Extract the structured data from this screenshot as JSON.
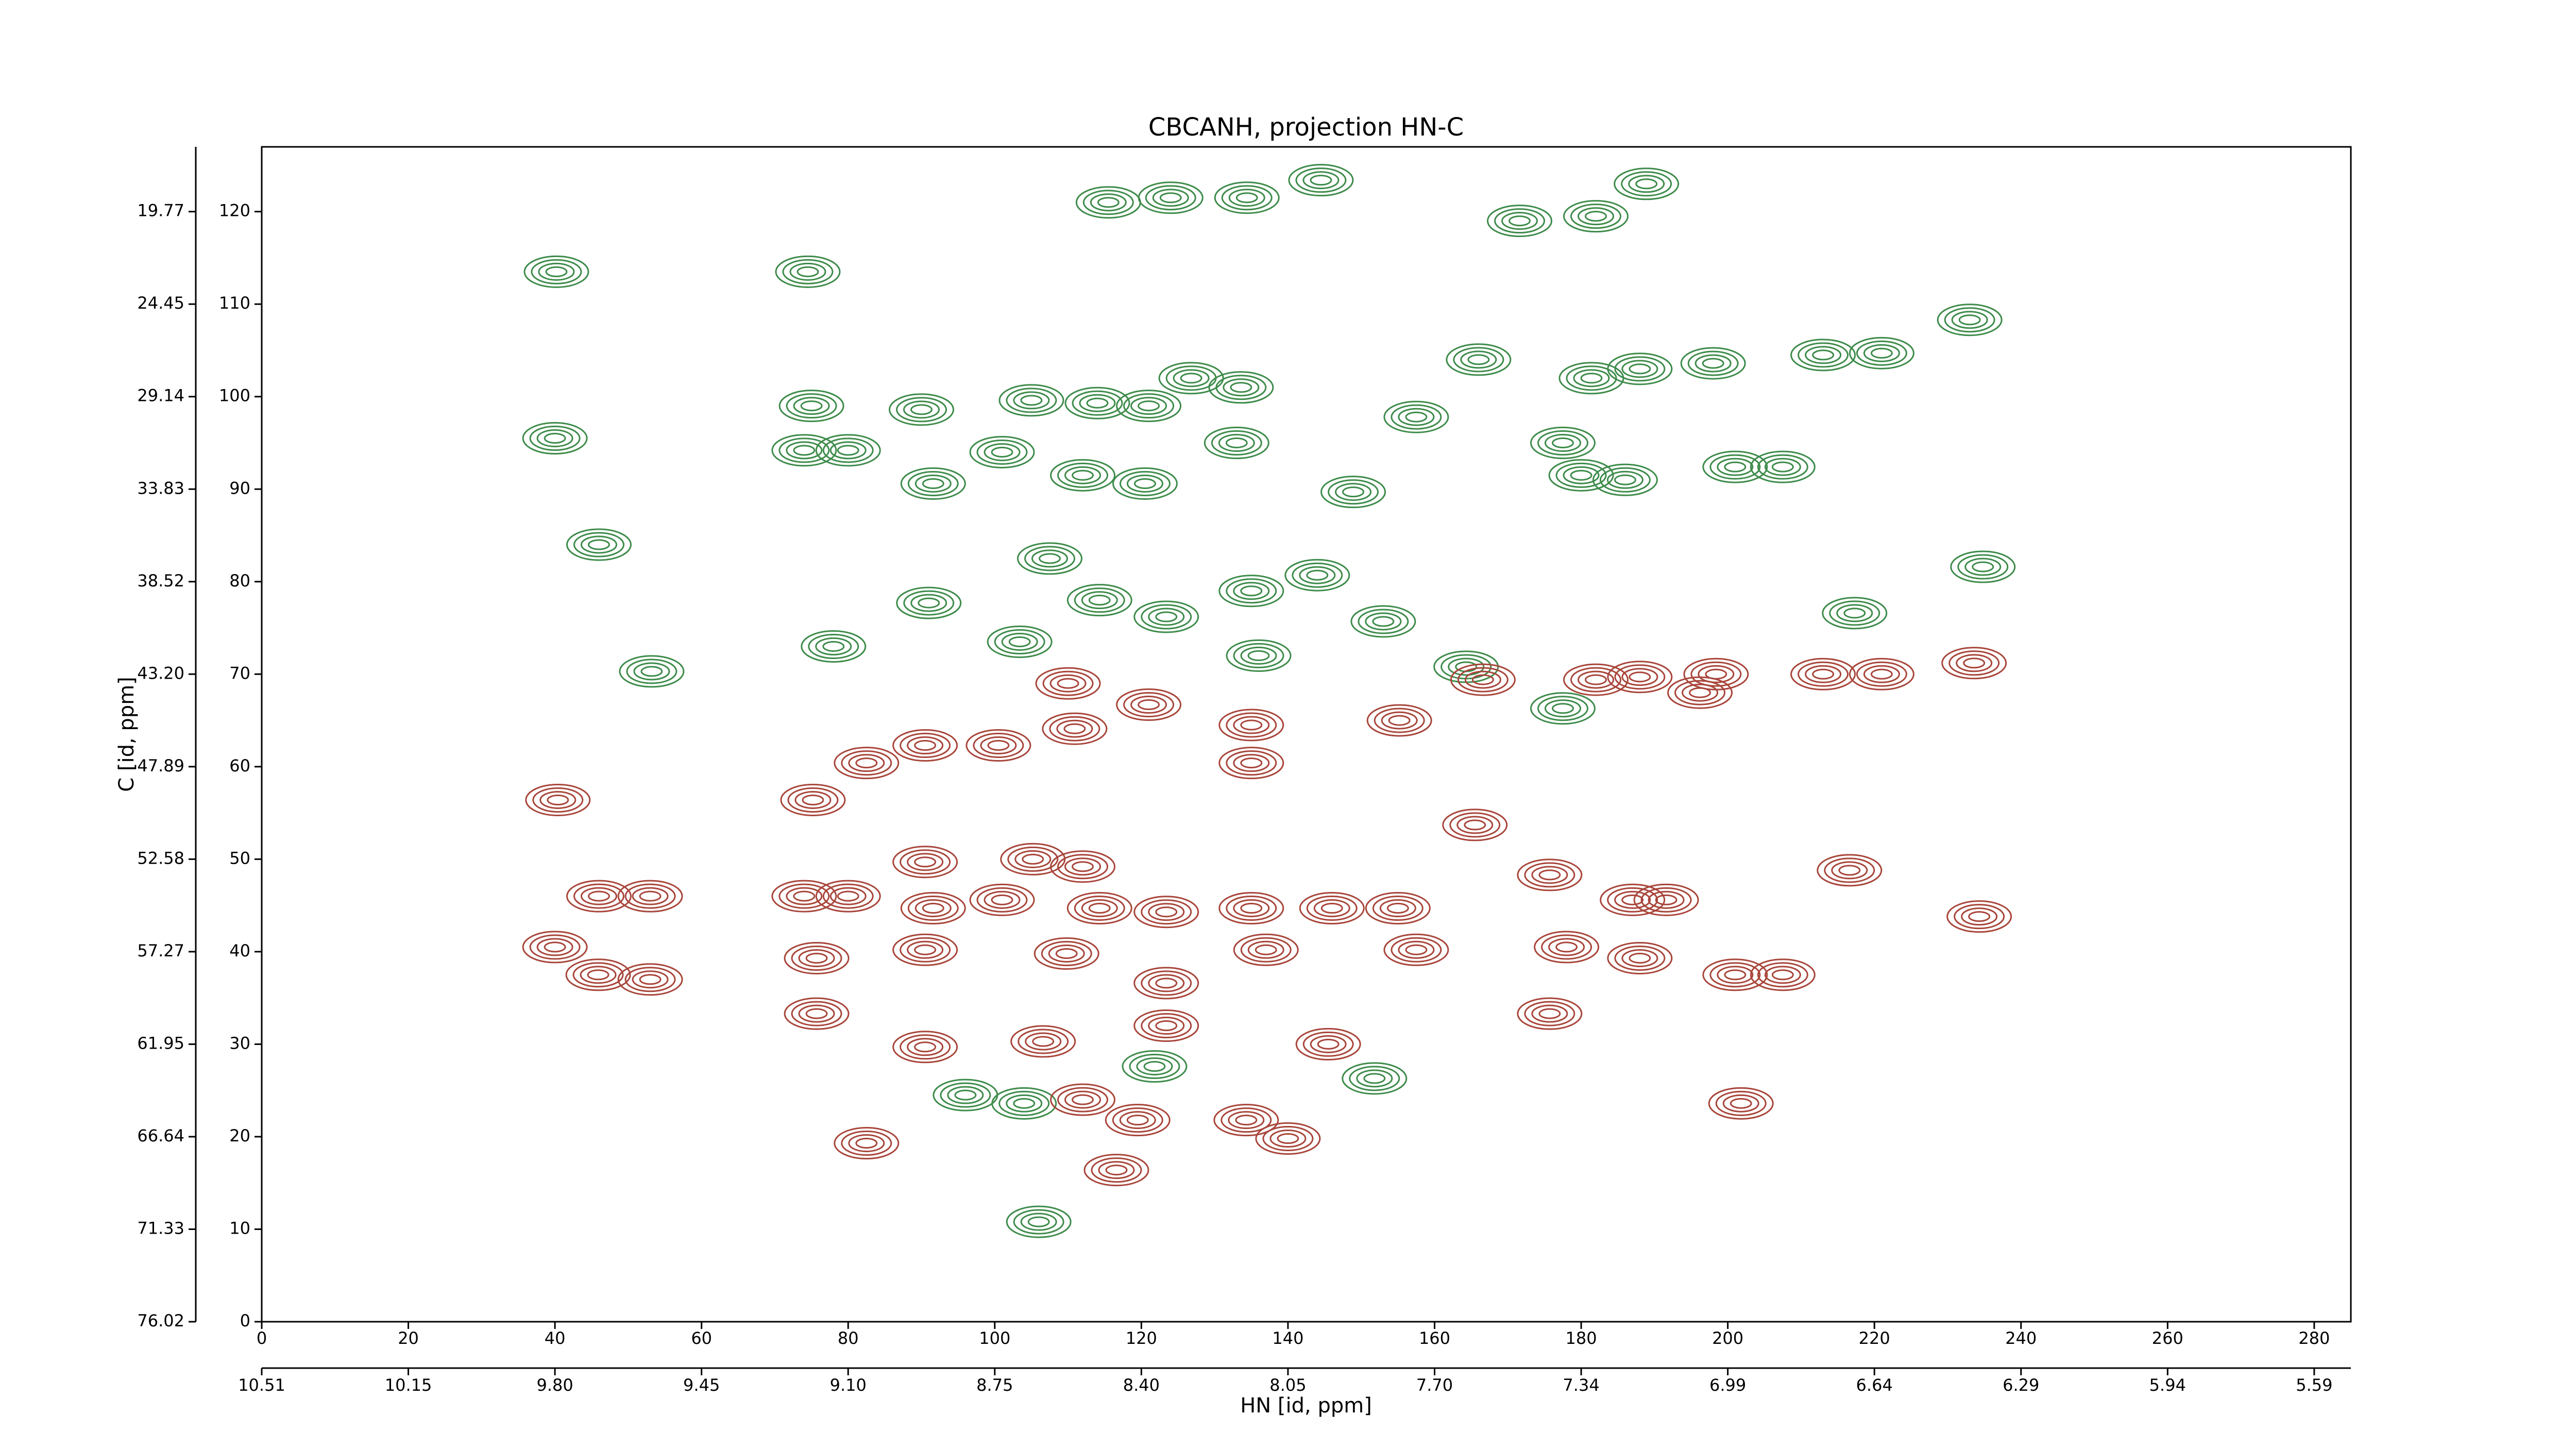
{
  "chart_data": {
    "type": "contour",
    "title": "CBCANH, projection HN-C",
    "xlabel": "HN [id, ppm]",
    "ylabel": "C [id, ppm]",
    "xlim": [
      0,
      285
    ],
    "ylim": [
      0,
      127
    ],
    "xticks": [
      0,
      20,
      40,
      60,
      80,
      100,
      120,
      140,
      160,
      180,
      200,
      220,
      240,
      260,
      280
    ],
    "x2ticks": [
      {
        "value": 0,
        "label": "10.51"
      },
      {
        "value": 20,
        "label": "10.15"
      },
      {
        "value": 40,
        "label": "9.80"
      },
      {
        "value": 60,
        "label": "9.45"
      },
      {
        "value": 80,
        "label": "9.10"
      },
      {
        "value": 100,
        "label": "8.75"
      },
      {
        "value": 120,
        "label": "8.40"
      },
      {
        "value": 140,
        "label": "8.05"
      },
      {
        "value": 160,
        "label": "7.70"
      },
      {
        "value": 180,
        "label": "7.34"
      },
      {
        "value": 200,
        "label": "6.99"
      },
      {
        "value": 220,
        "label": "6.64"
      },
      {
        "value": 240,
        "label": "6.29"
      },
      {
        "value": 260,
        "label": "5.94"
      },
      {
        "value": 280,
        "label": "5.59"
      }
    ],
    "yticks": [
      0,
      10,
      20,
      30,
      40,
      50,
      60,
      70,
      80,
      90,
      100,
      110,
      120
    ],
    "y2ticks": [
      {
        "value": 0,
        "label": "76.02"
      },
      {
        "value": 10,
        "label": "71.33"
      },
      {
        "value": 20,
        "label": "66.64"
      },
      {
        "value": 30,
        "label": "61.95"
      },
      {
        "value": 40,
        "label": "57.27"
      },
      {
        "value": 50,
        "label": "52.58"
      },
      {
        "value": 60,
        "label": "47.89"
      },
      {
        "value": 70,
        "label": "43.20"
      },
      {
        "value": 80,
        "label": "38.52"
      },
      {
        "value": 90,
        "label": "33.83"
      },
      {
        "value": 100,
        "label": "29.14"
      },
      {
        "value": 110,
        "label": "24.45"
      },
      {
        "value": 120,
        "label": "19.77"
      }
    ],
    "series": [
      {
        "color": "#3d8b4a",
        "x": [
          115.5,
          124,
          134.4,
          144.5,
          188.9,
          171.6,
          182,
          40.2,
          74.5,
          233,
          166,
          181.4,
          188,
          198,
          213,
          221,
          75,
          90,
          105,
          114,
          121,
          126.8,
          133.6,
          157.5,
          40,
          74,
          80,
          91.6,
          101,
          112,
          120.5,
          133,
          148.9,
          177.5,
          180,
          186,
          201,
          207.5,
          46,
          91,
          107.5,
          114.3,
          123.4,
          135,
          144,
          153,
          217.3,
          234.8,
          78,
          53.2,
          103.4,
          136,
          164.3,
          177.5,
          96,
          104,
          121.8,
          151.8,
          106
        ],
        "y": [
          121,
          121.5,
          121.5,
          123.4,
          123,
          119,
          119.5,
          113.5,
          113.5,
          108.3,
          104,
          102,
          103,
          103.6,
          104.5,
          104.7,
          99,
          98.6,
          99.6,
          99.3,
          99,
          102,
          101,
          97.8,
          95.5,
          94.2,
          94.2,
          90.6,
          94,
          91.5,
          90.6,
          95,
          89.7,
          95,
          91.5,
          91,
          92.4,
          92.4,
          84,
          77.7,
          82.5,
          78,
          76.2,
          79,
          80.7,
          75.7,
          76.6,
          81.6,
          73,
          70.3,
          73.5,
          72,
          70.8,
          66.3,
          24.5,
          23.6,
          27.6,
          26.3,
          10.8
        ]
      },
      {
        "color": "#a8453a",
        "x": [
          110,
          121,
          135,
          166.6,
          182,
          188,
          198.4,
          213,
          221,
          233.6,
          196.2,
          82.5,
          90.5,
          100.5,
          110.9,
          135,
          155.2,
          40.4,
          75.2,
          165.5,
          90.5,
          105.2,
          112,
          46,
          53,
          74,
          80,
          91.6,
          101,
          114.3,
          123.4,
          135,
          146,
          155,
          175.7,
          187,
          191.6,
          216.6,
          234.3,
          40,
          45.9,
          53,
          75.7,
          90.5,
          109.8,
          123.4,
          137,
          157.5,
          178,
          188,
          201,
          207.5,
          75.7,
          106.6,
          123.4,
          175.7,
          90.5,
          145.5,
          112,
          119.5,
          134.3,
          140,
          201.8,
          82.5,
          116.6
        ],
        "y": [
          69,
          66.7,
          64.5,
          69.4,
          69.4,
          69.7,
          70,
          70,
          70,
          71.2,
          68,
          60.4,
          62.3,
          62.3,
          64.1,
          60.4,
          65,
          56.4,
          56.4,
          53.7,
          49.7,
          50,
          49.2,
          46,
          46,
          46,
          46,
          44.7,
          45.6,
          44.7,
          44.3,
          44.7,
          44.7,
          44.7,
          48.3,
          45.6,
          45.6,
          48.8,
          43.8,
          40.5,
          37.5,
          37,
          39.3,
          40.2,
          39.8,
          36.6,
          40.2,
          40.2,
          40.5,
          39.3,
          37.5,
          37.5,
          33.3,
          30.3,
          32,
          33.3,
          29.7,
          30,
          24,
          21.8,
          21.8,
          19.8,
          23.6,
          19.3,
          16.4
        ]
      }
    ]
  }
}
